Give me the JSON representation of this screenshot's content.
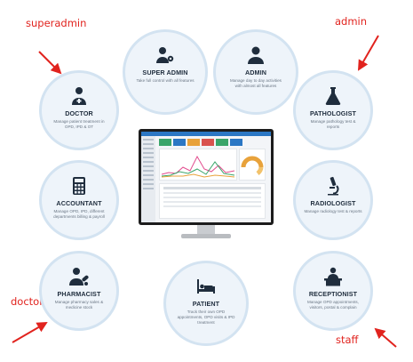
{
  "annotations": {
    "superadmin": "superadmin",
    "admin": "admin",
    "doctor": "doctor",
    "staff": "staff"
  },
  "roles": {
    "super_admin": {
      "title": "SUPER ADMIN",
      "desc": "Take full control with all features",
      "icon": "user-gear-icon"
    },
    "admin": {
      "title": "ADMIN",
      "desc": "Manage day to day activities with almost all features",
      "icon": "user-icon"
    },
    "doctor": {
      "title": "DOCTOR",
      "desc": "Manage patient treatment in OPD, IPD & OT",
      "icon": "doctor-icon"
    },
    "pathologist": {
      "title": "PATHOLOGIST",
      "desc": "Manage pathology test & reports",
      "icon": "flask-icon"
    },
    "accountant": {
      "title": "ACCOUNTANT",
      "desc": "Manage OPD, IPD, different departments billing & payroll",
      "icon": "calculator-icon"
    },
    "radiologist": {
      "title": "RADIOLOGIST",
      "desc": "Manage radiology test & reports",
      "icon": "microscope-icon"
    },
    "pharmacist": {
      "title": "PHARMACIST",
      "desc": "Manage pharmacy sales & medicine stock",
      "icon": "pharmacist-icon"
    },
    "patient": {
      "title": "PATIENT",
      "desc": "Track their own OPD appointments, OPD visits & IPD treatment",
      "icon": "bed-icon"
    },
    "receptionist": {
      "title": "RECEPTIONIST",
      "desc": "Manage OPD appointments, visitors, postal & complain",
      "icon": "receptionist-icon"
    }
  },
  "colors": {
    "annotation": "#e1231e",
    "circle_fill": "#eef4fa",
    "circle_border": "#d3e3f1",
    "title": "#1f2d3d",
    "accent": "#2b77c4"
  }
}
